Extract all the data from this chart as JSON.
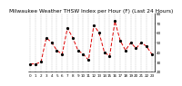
{
  "title": "Milwaukee Weather THSW Index per Hour (F) (Last 24 Hours)",
  "x_values": [
    0,
    1,
    2,
    3,
    4,
    5,
    6,
    7,
    8,
    9,
    10,
    11,
    12,
    13,
    14,
    15,
    16,
    17,
    18,
    19,
    20,
    21,
    22,
    23
  ],
  "y_values": [
    28,
    28,
    30,
    55,
    50,
    42,
    38,
    65,
    55,
    42,
    38,
    32,
    68,
    60,
    40,
    36,
    72,
    52,
    42,
    50,
    44,
    50,
    46,
    38
  ],
  "line_color": "#dd0000",
  "marker_color": "#000000",
  "bg_color": "#ffffff",
  "plot_bg": "#ffffff",
  "ylim": [
    20,
    80
  ],
  "ytick_values": [
    20,
    30,
    40,
    50,
    60,
    70,
    80
  ],
  "ytick_labels": [
    "20",
    "30",
    "40",
    "50",
    "60",
    "70",
    "80"
  ],
  "grid_color": "#888888",
  "title_fontsize": 4.2,
  "tick_fontsize": 3.0,
  "line_width": 0.7,
  "marker_size": 1.3
}
